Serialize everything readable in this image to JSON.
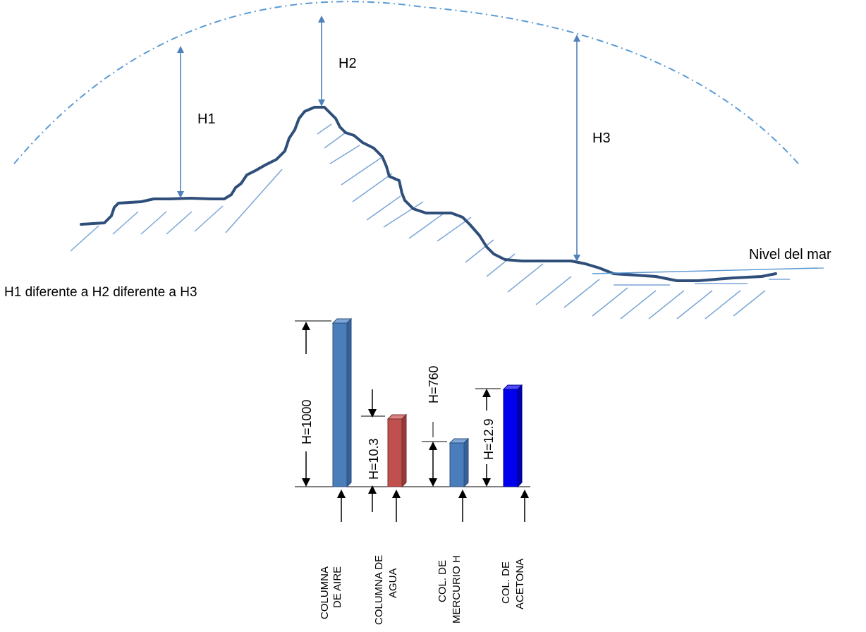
{
  "labels": {
    "h1": "H1",
    "h2": "H2",
    "h3": "H3",
    "sea_level": "Nivel del mar",
    "statement": "H1 diferente a H2 diferente a H3"
  },
  "columns": [
    {
      "name": "column-aire",
      "height_label": "H=1000",
      "category_line1": "COLUMNA",
      "category_line2": "DE AIRE",
      "color": "#4a7ebb",
      "top_color": "#7fa6d6",
      "side_color": "#35609a"
    },
    {
      "name": "column-agua",
      "height_label": "H=10.3",
      "category_line1": "COLUMNA DE",
      "category_line2": "AGUA",
      "color": "#c0504d",
      "top_color": "#d9827f",
      "side_color": "#943b39"
    },
    {
      "name": "column-mercurio",
      "height_label": "H=760",
      "category_line1": "COL. DE",
      "category_line2": "MERCURIO H",
      "color": "#4a7ebb",
      "top_color": "#7fa6d6",
      "side_color": "#35609a"
    },
    {
      "name": "column-acetona",
      "height_label": "H=12.9",
      "category_line1": "COL. DE",
      "category_line2": "ACETONA",
      "color": "#0000ee",
      "top_color": "#4d4dff",
      "side_color": "#0000a8"
    }
  ],
  "colors": {
    "arc": "#5b9bd5",
    "terrain": "#2f4f7a",
    "hatch": "#7aa6d6",
    "arrow": "#4f81bd"
  }
}
